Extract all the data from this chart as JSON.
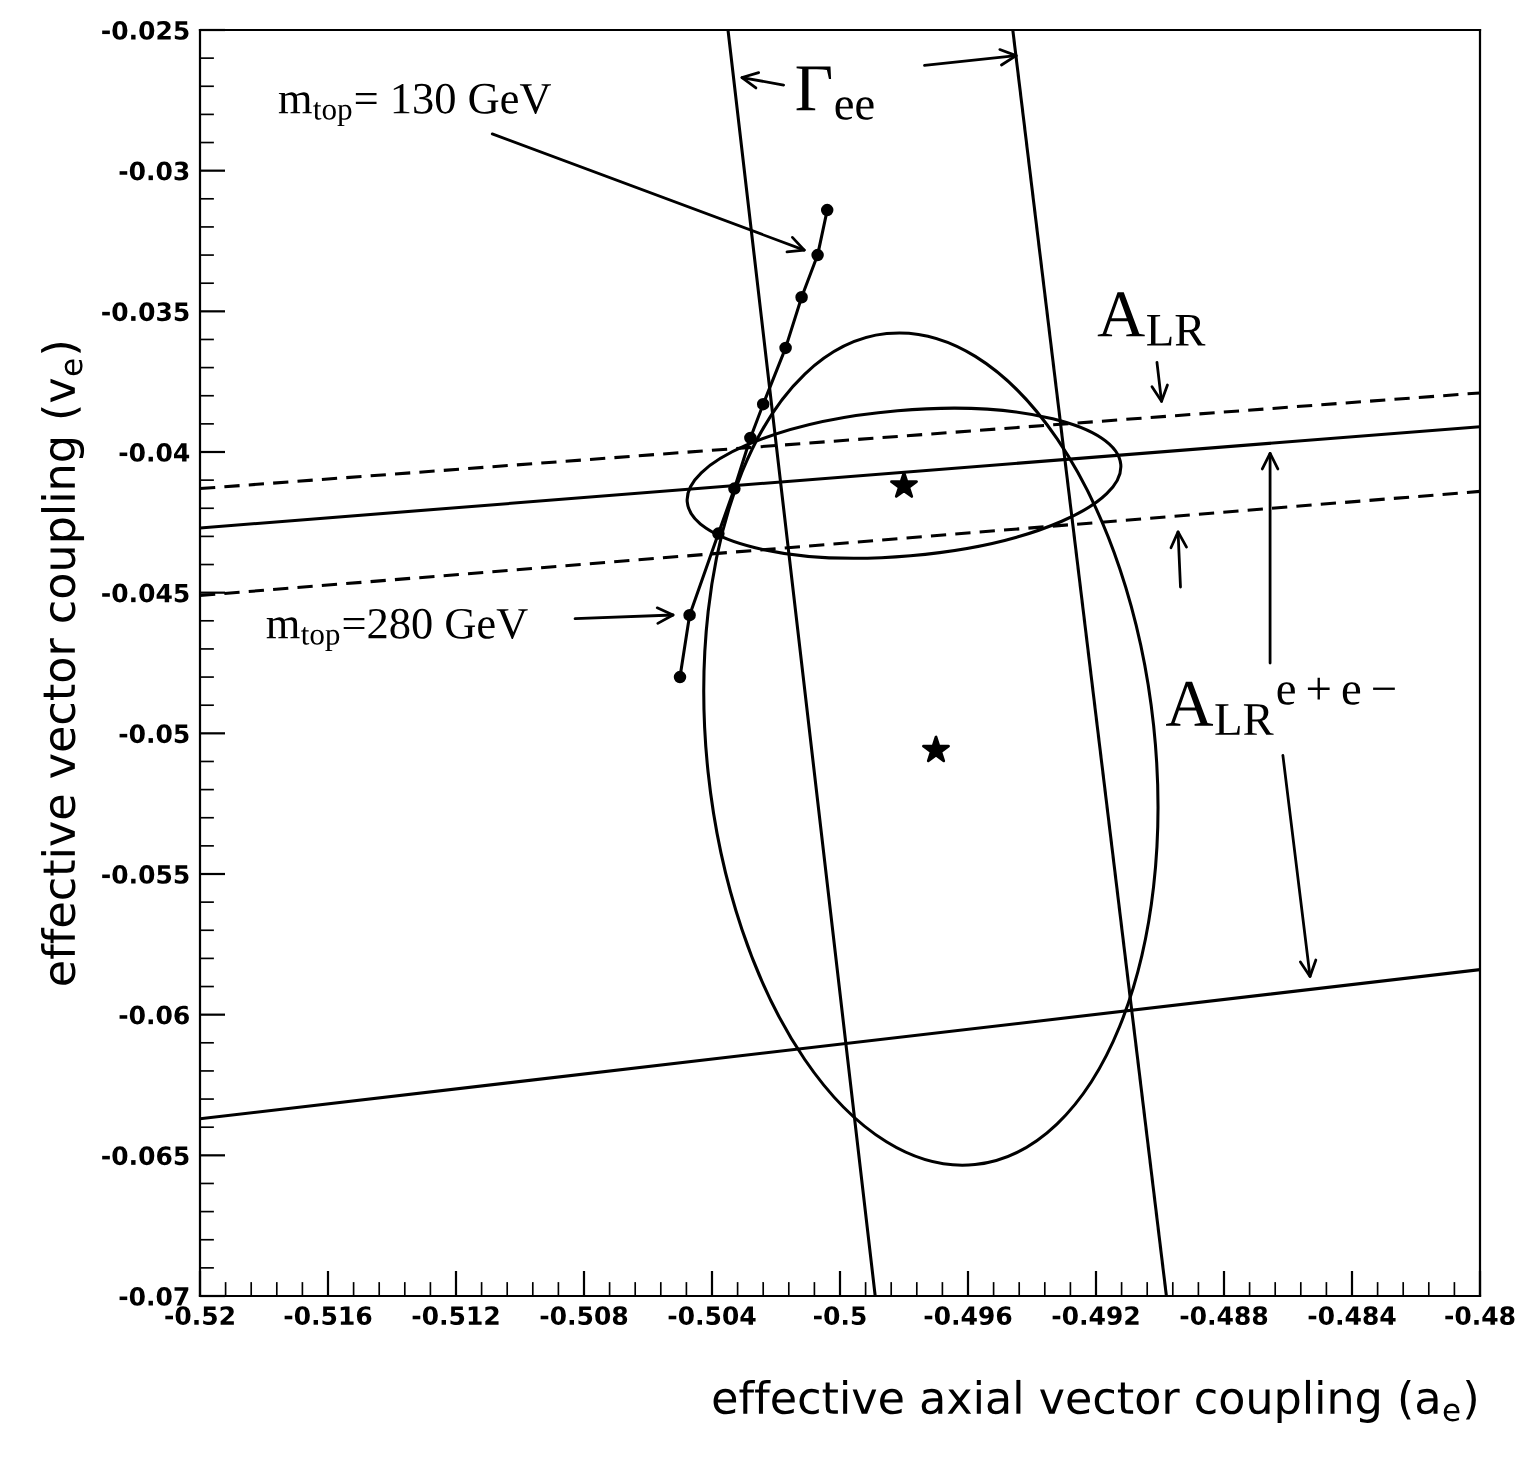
{
  "chart_data": {
    "type": "line",
    "xlabel": "effective axial vector coupling (a$_{e}$)",
    "ylabel": "effective vector coupling (v$_{e}$)",
    "xlim": [
      -0.52,
      -0.48
    ],
    "ylim": [
      -0.07,
      -0.025
    ],
    "xticks": [
      -0.52,
      -0.516,
      -0.512,
      -0.508,
      -0.504,
      -0.5,
      -0.496,
      -0.492,
      -0.488,
      -0.484,
      -0.48
    ],
    "yticks": [
      -0.07,
      -0.065,
      -0.06,
      -0.055,
      -0.05,
      -0.045,
      -0.04,
      -0.035,
      -0.03,
      -0.025
    ],
    "series": [
      {
        "color": "#000000",
        "line_style": "solid",
        "x": [
          -0.5035,
          -0.4989
        ],
        "values": [
          -0.025,
          -0.07
        ]
      },
      {
        "color": "#000000",
        "line_style": "solid",
        "x": [
          -0.4946,
          -0.4898
        ],
        "values": [
          -0.025,
          -0.07
        ]
      },
      {
        "color": "#000000",
        "line_style": "solid",
        "x": [
          -0.52,
          -0.48
        ],
        "values": [
          -0.0427,
          -0.0391
        ]
      },
      {
        "color": "#000000",
        "line_style": "dashed",
        "x": [
          -0.52,
          -0.48
        ],
        "values": [
          -0.0413,
          -0.0379
        ]
      },
      {
        "color": "#000000",
        "line_style": "dashed",
        "x": [
          -0.52,
          -0.48
        ],
        "values": [
          -0.0451,
          -0.0414
        ]
      },
      {
        "color": "#000000",
        "line_style": "solid",
        "x": [
          -0.52,
          -0.48
        ],
        "values": [
          -0.0637,
          -0.0584
        ]
      },
      {
        "color": "#000000",
        "line_style": "solid",
        "marker": "circle",
        "x": [
          -0.505,
          -0.5047,
          -0.5038,
          -0.5033,
          -0.5028,
          -0.5024,
          -0.5017,
          -0.5012,
          -0.5007,
          -0.5004
        ],
        "values": [
          -0.048,
          -0.0458,
          -0.0429,
          -0.0413,
          -0.0395,
          -0.0383,
          -0.0363,
          -0.0345,
          -0.033,
          -0.0314
        ]
      },
      {
        "type": "scatter",
        "color": "#000000",
        "marker": "star",
        "x": [
          -0.498,
          -0.497
        ],
        "values": [
          -0.0412,
          -0.0506
        ]
      }
    ],
    "annotations": [
      {
        "text": "Γ$_{ee}$",
        "x": -0.5035,
        "y": -0.0266
      },
      {
        "text": "A$_{LR}$",
        "x": -0.4899,
        "y": -0.0387
      },
      "A$_{LR}$$^{e+e−}$",
      {
        "text": "m$_{top}$= 130 GeV",
        "x": -0.5007,
        "y": -0.033
      },
      "m$_{top}$=280 GeV"
    ]
  }
}
